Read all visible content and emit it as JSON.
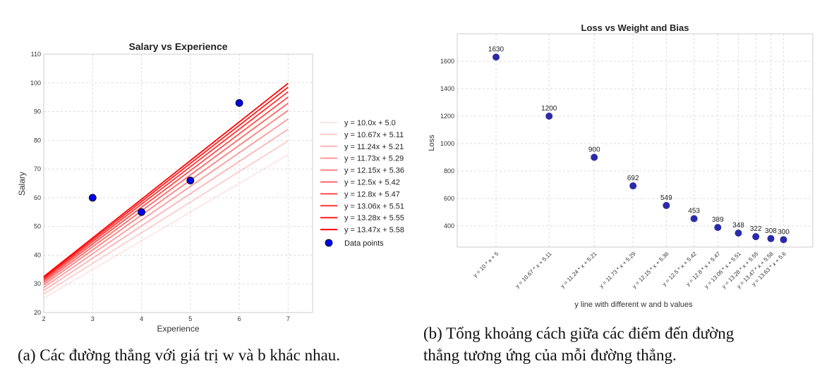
{
  "chart_data": [
    {
      "type": "line",
      "title": "Salary vs Experience",
      "xlabel": "Experience",
      "ylabel": "Salary",
      "xlim": [
        2,
        7.5
      ],
      "ylim": [
        20,
        110
      ],
      "xticks": [
        2,
        3,
        4,
        5,
        6,
        7
      ],
      "yticks": [
        20,
        30,
        40,
        50,
        60,
        70,
        80,
        90,
        100,
        110
      ],
      "grid": true,
      "legend_position": "right",
      "line_x_range": [
        2,
        7
      ],
      "lines": [
        {
          "label": "y = 10.0x + 5.0",
          "w": 10.0,
          "b": 5.0,
          "alpha": 0.1
        },
        {
          "label": "y = 10.67x + 5.11",
          "w": 10.67,
          "b": 5.11,
          "alpha": 0.2
        },
        {
          "label": "y = 11.24x + 5.21",
          "w": 11.24,
          "b": 5.21,
          "alpha": 0.3
        },
        {
          "label": "y = 11.73x + 5.29",
          "w": 11.73,
          "b": 5.29,
          "alpha": 0.4
        },
        {
          "label": "y = 12.15x + 5.36",
          "w": 12.15,
          "b": 5.36,
          "alpha": 0.5
        },
        {
          "label": "y = 12.5x + 5.42",
          "w": 12.5,
          "b": 5.42,
          "alpha": 0.6
        },
        {
          "label": "y = 12.8x + 5.47",
          "w": 12.8,
          "b": 5.47,
          "alpha": 0.7
        },
        {
          "label": "y = 13.06x + 5.51",
          "w": 13.06,
          "b": 5.51,
          "alpha": 0.8
        },
        {
          "label": "y = 13.28x + 5.55",
          "w": 13.28,
          "b": 5.55,
          "alpha": 0.9
        },
        {
          "label": "y = 13.47x + 5.58",
          "w": 13.47,
          "b": 5.58,
          "alpha": 1.0
        }
      ],
      "points_label": "Data points",
      "points": [
        [
          3,
          60
        ],
        [
          4,
          55
        ],
        [
          5,
          66
        ],
        [
          6,
          93
        ]
      ],
      "line_color": "#ff0000",
      "point_color": "#0000ee"
    },
    {
      "type": "scatter",
      "title": "Loss vs Weight and Bias",
      "xlabel": "y line with different w and b values",
      "ylabel": "Loss",
      "xlim": [
        9.51,
        14.0
      ],
      "ylim": [
        246,
        1800
      ],
      "yticks": [
        400,
        600,
        800,
        1000,
        1200,
        1400,
        1600
      ],
      "grid": true,
      "point_color": "#2b2ba8",
      "points": [
        {
          "w": 10,
          "label": "y = 10 * x + 5",
          "loss": 1630
        },
        {
          "w": 10.67,
          "label": "y = 10.67 * x + 5.11",
          "loss": 1200
        },
        {
          "w": 11.24,
          "label": "y = 11.24 * x + 5.21",
          "loss": 900
        },
        {
          "w": 11.73,
          "label": "y = 11.73 * x + 5.29",
          "loss": 692
        },
        {
          "w": 12.15,
          "label": "y = 12.15 * x + 5.36",
          "loss": 549
        },
        {
          "w": 12.5,
          "label": "y = 12.5 * x + 5.42",
          "loss": 453
        },
        {
          "w": 12.8,
          "label": "y = 12.8 * x + 5.47",
          "loss": 389
        },
        {
          "w": 13.06,
          "label": "y = 13.06 * x + 5.51",
          "loss": 348
        },
        {
          "w": 13.28,
          "label": "y = 13.28 * x + 5.55",
          "loss": 322
        },
        {
          "w": 13.47,
          "label": "y = 13.47 * x + 5.58",
          "loss": 308
        },
        {
          "w": 13.63,
          "label": "y = 13.63 * x + 5.6",
          "loss": 300
        }
      ]
    }
  ],
  "captions": {
    "a": "(a) Các đường thẳng với giá trị w và b khác nhau.",
    "b_line1": "(b) Tổng khoảng cách giữa các điểm đến đường",
    "b_line2": "thẳng tương ứng của mỗi đường thẳng."
  }
}
